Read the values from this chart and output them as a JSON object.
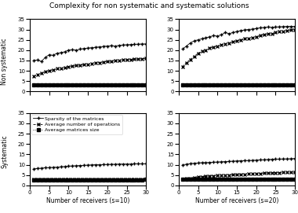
{
  "title": "Complexity for non systematic and systematic solutions",
  "x": [
    1,
    2,
    3,
    4,
    5,
    6,
    7,
    8,
    9,
    10,
    11,
    12,
    13,
    14,
    15,
    16,
    17,
    18,
    19,
    20,
    21,
    22,
    23,
    24,
    25,
    26,
    27,
    28,
    29,
    30
  ],
  "xlabel_left": "Number of receivers (s=10)",
  "xlabel_right": "Number of receivers (s=20)",
  "ylabel_top": "Non systematic",
  "ylabel_bottom": "Systematic",
  "ylim": [
    0,
    35
  ],
  "yticks": [
    0,
    5,
    10,
    15,
    20,
    25,
    30,
    35
  ],
  "legend_labels": [
    "Sparsity of the matrices",
    "Average number of operations",
    "Average matrices size"
  ],
  "top_left": {
    "sparsity": [
      15.0,
      15.2,
      14.5,
      16.5,
      17.8,
      17.5,
      18.5,
      18.8,
      19.2,
      20.0,
      20.2,
      20.0,
      20.5,
      20.8,
      21.0,
      21.2,
      21.4,
      21.6,
      21.8,
      22.0,
      22.2,
      22.0,
      22.3,
      22.5,
      22.6,
      22.7,
      22.8,
      22.9,
      23.0,
      23.0
    ],
    "avg_ops": [
      7.5,
      8.2,
      8.8,
      9.5,
      10.0,
      10.5,
      11.0,
      11.2,
      11.5,
      12.0,
      12.2,
      12.5,
      12.8,
      13.0,
      13.2,
      13.5,
      13.8,
      14.0,
      14.2,
      14.5,
      14.6,
      14.8,
      15.0,
      15.2,
      15.3,
      15.5,
      15.6,
      15.7,
      15.8,
      16.0
    ],
    "avg_size": [
      3.0,
      3.0,
      3.0,
      3.0,
      3.0,
      3.0,
      3.0,
      3.0,
      3.0,
      3.0,
      3.0,
      3.0,
      3.0,
      3.0,
      3.0,
      3.0,
      3.0,
      3.0,
      3.0,
      3.0,
      3.0,
      3.0,
      3.0,
      3.0,
      3.0,
      3.0,
      3.0,
      3.0,
      3.0,
      3.0
    ]
  },
  "top_right": {
    "sparsity": [
      20.5,
      22.0,
      23.5,
      24.5,
      25.0,
      25.5,
      26.0,
      26.5,
      27.0,
      26.8,
      27.5,
      28.5,
      28.0,
      28.5,
      29.0,
      29.5,
      29.8,
      30.0,
      30.2,
      30.5,
      30.8,
      31.0,
      31.2,
      31.0,
      31.2,
      31.3,
      31.4,
      31.5,
      31.5,
      31.5
    ],
    "avg_ops": [
      12.0,
      14.0,
      15.5,
      17.0,
      18.5,
      19.5,
      20.0,
      21.0,
      21.5,
      22.0,
      22.5,
      23.0,
      23.5,
      24.0,
      24.5,
      25.0,
      25.5,
      25.8,
      26.0,
      26.5,
      27.0,
      27.5,
      27.8,
      28.0,
      28.5,
      29.0,
      29.2,
      29.5,
      29.7,
      30.0
    ],
    "avg_size": [
      3.0,
      3.0,
      3.0,
      3.0,
      3.0,
      3.0,
      3.0,
      3.0,
      3.0,
      3.0,
      3.0,
      3.0,
      3.0,
      3.0,
      3.0,
      3.0,
      3.0,
      3.0,
      3.0,
      3.0,
      3.0,
      3.0,
      3.0,
      3.0,
      3.0,
      3.0,
      3.0,
      3.0,
      3.0,
      3.0
    ]
  },
  "bot_left": {
    "sparsity": [
      8.0,
      8.2,
      8.3,
      8.5,
      8.6,
      8.7,
      8.8,
      9.0,
      9.1,
      9.3,
      9.4,
      9.5,
      9.6,
      9.7,
      9.8,
      9.9,
      10.0,
      10.0,
      10.1,
      10.1,
      10.2,
      10.2,
      10.3,
      10.3,
      10.3,
      10.3,
      10.4,
      10.4,
      10.4,
      10.5
    ],
    "avg_ops": [
      3.0,
      3.0,
      3.0,
      3.0,
      3.0,
      3.0,
      3.0,
      3.0,
      3.0,
      3.0,
      3.0,
      3.0,
      3.0,
      3.0,
      3.0,
      3.0,
      3.0,
      3.0,
      3.0,
      3.0,
      3.0,
      3.0,
      3.0,
      3.0,
      3.0,
      3.0,
      3.0,
      3.0,
      3.0,
      3.0
    ],
    "avg_size": [
      2.5,
      2.5,
      2.5,
      2.5,
      2.5,
      2.5,
      2.5,
      2.5,
      2.5,
      2.5,
      2.5,
      2.5,
      2.5,
      2.5,
      2.5,
      2.5,
      2.5,
      2.5,
      2.5,
      2.5,
      2.5,
      2.5,
      2.5,
      2.5,
      2.5,
      2.5,
      2.5,
      2.5,
      2.5,
      3.0
    ]
  },
  "bot_right": {
    "sparsity": [
      10.0,
      10.2,
      10.5,
      10.7,
      10.8,
      11.0,
      11.0,
      11.1,
      11.2,
      11.3,
      11.4,
      11.5,
      11.6,
      11.7,
      11.8,
      11.9,
      12.0,
      12.0,
      12.1,
      12.2,
      12.3,
      12.4,
      12.5,
      12.6,
      12.7,
      12.7,
      12.8,
      12.8,
      12.9,
      13.0
    ],
    "avg_ops": [
      3.0,
      3.2,
      3.5,
      3.8,
      4.0,
      4.2,
      4.4,
      4.5,
      4.6,
      4.7,
      4.8,
      4.9,
      5.0,
      5.1,
      5.2,
      5.3,
      5.4,
      5.5,
      5.6,
      5.7,
      5.8,
      5.9,
      6.0,
      6.0,
      6.1,
      6.1,
      6.2,
      6.2,
      6.2,
      6.3
    ],
    "avg_size": [
      3.0,
      3.0,
      3.0,
      3.0,
      3.0,
      3.0,
      3.0,
      3.0,
      3.0,
      3.0,
      3.0,
      3.0,
      3.0,
      3.0,
      3.0,
      3.0,
      3.0,
      3.0,
      3.0,
      3.0,
      3.0,
      3.0,
      3.0,
      3.0,
      3.0,
      3.0,
      3.0,
      3.0,
      3.0,
      3.0
    ]
  },
  "title_fontsize": 6.5,
  "label_fontsize": 5.5,
  "tick_fontsize": 5,
  "legend_fontsize": 4.5
}
